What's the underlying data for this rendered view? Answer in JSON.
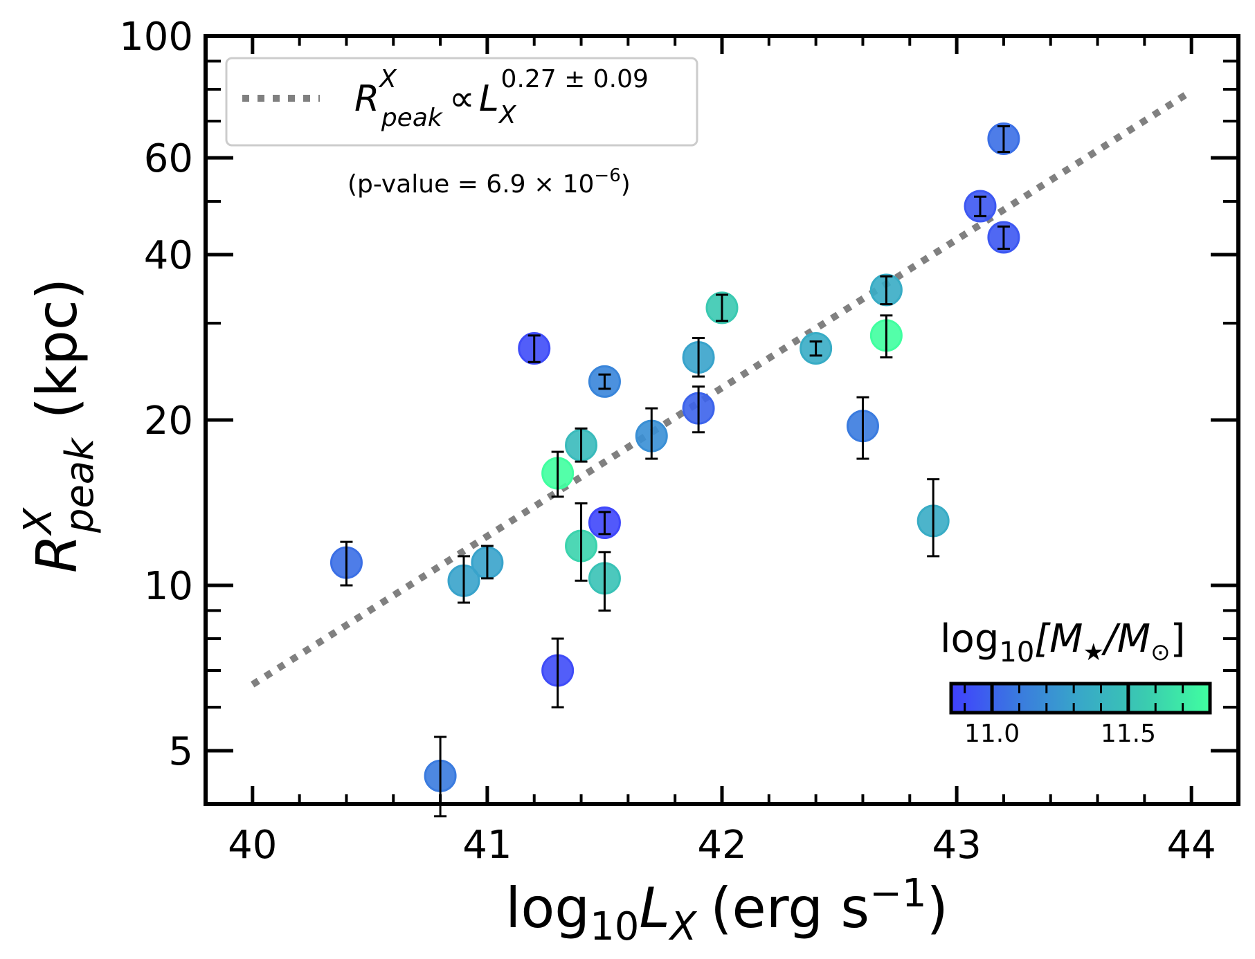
{
  "chart_data": {
    "type": "scatter",
    "x_axis": {
      "label_main": "log",
      "label_sub": "10",
      "label_var": "L",
      "label_var_sub": "X",
      "label_units": "(erg s",
      "label_units_sup": "−1",
      "label_close": ")",
      "scale": "linear",
      "lim": [
        39.8,
        44.2
      ],
      "ticks": [
        40,
        41,
        42,
        43,
        44
      ],
      "tick_labels": [
        "40",
        "41",
        "42",
        "43",
        "44"
      ]
    },
    "y_axis": {
      "label_var": "R",
      "label_sup": "X",
      "label_sub": "peak",
      "label_units": "(kpc)",
      "scale": "log",
      "lim": [
        4.0,
        100
      ],
      "ticks": [
        5,
        10,
        20,
        40,
        60,
        100
      ],
      "tick_labels": [
        "5",
        "10",
        "20",
        "40",
        "60",
        "100"
      ]
    },
    "legend": {
      "position": "top-left",
      "fit_label_var": "R",
      "fit_label_sup": "X",
      "fit_label_sub": "peak",
      "fit_label_prop": "∝",
      "fit_label_L": "L",
      "fit_label_L_sub": "X",
      "fit_label_exp": "0.27 ± 0.09",
      "pvalue_text": "(p-value = 6.9 × 10",
      "pvalue_exp": "−6",
      "pvalue_close": ")"
    },
    "fit_line": {
      "style": "dotted",
      "color": "#808080",
      "slope_dex_per_dex": 0.27,
      "x_range": [
        40.0,
        44.0
      ],
      "y_at_x_start": 6.6
    },
    "colorbar": {
      "label_prefix": "log",
      "label_sub": "10",
      "label_body": "[M",
      "label_star": "★",
      "label_mid": "/M",
      "label_sun": "⊙",
      "label_close": "]",
      "vmin": 10.85,
      "vmax": 11.8,
      "ticks": [
        11.0,
        11.5
      ],
      "tick_labels": [
        "11.0",
        "11.5"
      ],
      "colors": [
        "#4040ff",
        "#3a78e0",
        "#38a8c8",
        "#3acbb0",
        "#40ffa0"
      ]
    },
    "points": [
      {
        "x": 40.4,
        "y": 11.0,
        "yerr_low": 1.0,
        "yerr_high": 1.0,
        "mass": 11.05
      },
      {
        "x": 40.8,
        "y": 4.5,
        "yerr_low": 0.7,
        "yerr_high": 0.8,
        "mass": 11.1
      },
      {
        "x": 40.9,
        "y": 10.2,
        "yerr_low": 0.9,
        "yerr_high": 1.1,
        "mass": 11.3
      },
      {
        "x": 41.0,
        "y": 11.0,
        "yerr_low": 0.7,
        "yerr_high": 0.8,
        "mass": 11.3
      },
      {
        "x": 41.2,
        "y": 27.0,
        "yerr_low": 1.5,
        "yerr_high": 1.5,
        "mass": 10.9
      },
      {
        "x": 41.3,
        "y": 16.0,
        "yerr_low": 1.5,
        "yerr_high": 1.5,
        "mass": 11.8
      },
      {
        "x": 41.3,
        "y": 7.0,
        "yerr_low": 1.0,
        "yerr_high": 1.0,
        "mass": 10.9
      },
      {
        "x": 41.4,
        "y": 18.0,
        "yerr_low": 1.2,
        "yerr_high": 1.3,
        "mass": 11.45
      },
      {
        "x": 41.4,
        "y": 11.8,
        "yerr_low": 1.6,
        "yerr_high": 2.3,
        "mass": 11.6
      },
      {
        "x": 41.5,
        "y": 23.5,
        "yerr_low": 0.7,
        "yerr_high": 0.7,
        "mass": 11.15
      },
      {
        "x": 41.5,
        "y": 13.0,
        "yerr_low": 0.6,
        "yerr_high": 0.6,
        "mass": 10.88
      },
      {
        "x": 41.5,
        "y": 10.3,
        "yerr_low": 1.3,
        "yerr_high": 1.2,
        "mass": 11.5
      },
      {
        "x": 41.7,
        "y": 18.7,
        "yerr_low": 1.7,
        "yerr_high": 2.3,
        "mass": 11.2
      },
      {
        "x": 41.9,
        "y": 26.0,
        "yerr_low": 2.0,
        "yerr_high": 2.2,
        "mass": 11.3
      },
      {
        "x": 41.9,
        "y": 21.0,
        "yerr_low": 2.0,
        "yerr_high": 2.0,
        "mass": 11.0
      },
      {
        "x": 42.0,
        "y": 32.0,
        "yerr_low": 1.7,
        "yerr_high": 1.8,
        "mass": 11.55
      },
      {
        "x": 42.4,
        "y": 27.0,
        "yerr_low": 0.8,
        "yerr_high": 0.8,
        "mass": 11.35
      },
      {
        "x": 42.6,
        "y": 19.5,
        "yerr_low": 2.5,
        "yerr_high": 2.5,
        "mass": 11.1
      },
      {
        "x": 42.7,
        "y": 34.5,
        "yerr_low": 2.0,
        "yerr_high": 2.0,
        "mass": 11.35
      },
      {
        "x": 42.7,
        "y": 28.5,
        "yerr_low": 2.5,
        "yerr_high": 2.5,
        "mass": 11.8
      },
      {
        "x": 42.9,
        "y": 13.1,
        "yerr_low": 1.8,
        "yerr_high": 2.5,
        "mass": 11.35
      },
      {
        "x": 43.1,
        "y": 49.0,
        "yerr_low": 2.0,
        "yerr_high": 2.0,
        "mass": 10.95
      },
      {
        "x": 43.2,
        "y": 65.0,
        "yerr_low": 3.5,
        "yerr_high": 3.5,
        "mass": 11.05
      },
      {
        "x": 43.2,
        "y": 43.0,
        "yerr_low": 2.0,
        "yerr_high": 2.0,
        "mass": 10.95
      }
    ]
  }
}
